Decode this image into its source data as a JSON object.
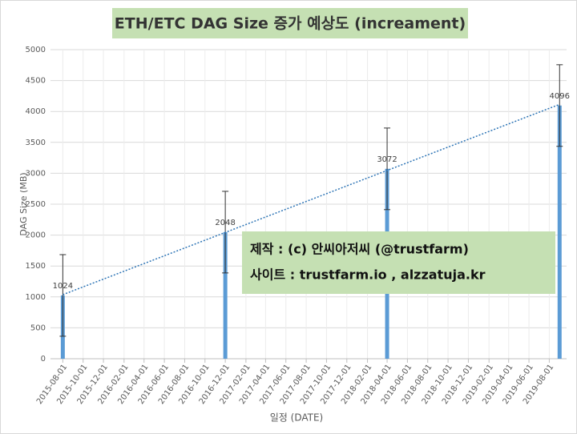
{
  "chart_data": {
    "type": "bar",
    "title": "ETH/ETC DAG Size 증가 예상도 (increament)",
    "x_label": "일정 (DATE)",
    "y_label": "DAG Size (MB)",
    "x": [
      "2015-08-01",
      "2016-12-01",
      "2018-04-01",
      "2019-09-01"
    ],
    "values": [
      1024,
      2048,
      3072,
      4096
    ],
    "errors": [
      660,
      660,
      660,
      660
    ],
    "color": "#5b9bd5",
    "trendline": true,
    "trendline_color": "#2e75b6",
    "ylim": [
      0,
      5000
    ],
    "yticks": [
      0,
      500,
      1000,
      1500,
      2000,
      2500,
      3000,
      3500,
      4000,
      4500,
      5000
    ],
    "xlim": [
      "2015-06-25",
      "2019-09-22"
    ],
    "xticks": [
      "2015-08-01",
      "2015-10-01",
      "2015-12-01",
      "2016-02-01",
      "2016-04-01",
      "2016-06-01",
      "2016-08-01",
      "2016-10-01",
      "2016-12-01",
      "2017-02-01",
      "2017-04-01",
      "2017-06-01",
      "2017-08-01",
      "2017-10-01",
      "2017-12-01",
      "2018-02-01",
      "2018-04-01",
      "2018-06-01",
      "2018-08-01",
      "2018-10-01",
      "2018-12-01",
      "2019-02-01",
      "2019-04-01",
      "2019-06-01",
      "2019-08-01"
    ],
    "grid": true,
    "annotations": [
      "제작 : (c) 안씨아저씨 (@trustfarm)",
      "사이트 : trustfarm.io  ,  alzzatuja.kr"
    ]
  }
}
